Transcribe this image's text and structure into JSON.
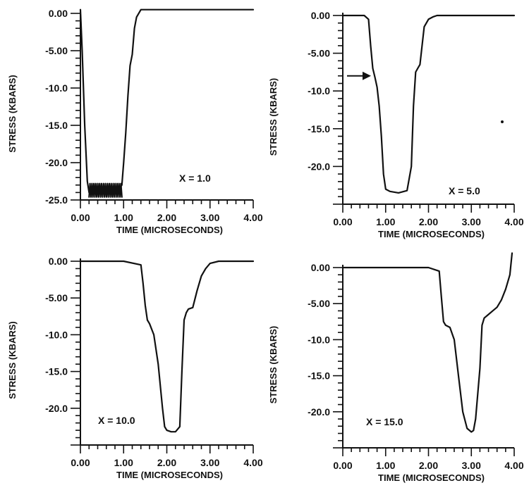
{
  "chart_data": [
    {
      "type": "line",
      "xlabel": "TIME (MICROSECONDS)",
      "ylabel": "STRESS (KBARS)",
      "annotation": "X = 1.0",
      "xlim": [
        0,
        4
      ],
      "ylim": [
        -25,
        0
      ],
      "xticks": [
        "0.00",
        "1.00",
        "2.00",
        "3.00",
        "4.00"
      ],
      "yticks": [
        "0.00",
        "-5.00",
        "-10.0",
        "-15.0",
        "-20.0",
        "-25.0"
      ],
      "x": [
        0.0,
        0.04,
        0.1,
        0.16,
        0.2,
        0.3,
        0.4,
        0.5,
        0.6,
        0.7,
        0.8,
        0.9,
        0.96,
        1.0,
        1.05,
        1.1,
        1.15,
        1.2,
        1.25,
        1.3,
        1.4,
        1.6,
        2.0,
        3.0,
        4.0
      ],
      "y": [
        0.5,
        -5.0,
        -15.0,
        -22.5,
        -24.0,
        -23.5,
        -24.0,
        -23.5,
        -23.8,
        -23.5,
        -23.8,
        -23.5,
        -23.0,
        -20.0,
        -16.0,
        -11.0,
        -7.0,
        -5.5,
        -2.0,
        -0.5,
        0.5,
        0.5,
        0.5,
        0.5,
        0.5
      ]
    },
    {
      "type": "line",
      "xlabel": "TIME (MICROSECONDS)",
      "ylabel": "STRESS (KBARS)",
      "annotation": "X = 5.0",
      "xlim": [
        0,
        4
      ],
      "ylim": [
        -25,
        0
      ],
      "xticks": [
        "0.00",
        "1.00",
        "2.00",
        "3.00",
        "4.00"
      ],
      "yticks": [
        "0.00",
        "-5.00",
        "-10.0",
        "-15.0",
        "-20.0"
      ],
      "x": [
        0.0,
        0.5,
        0.6,
        0.65,
        0.7,
        0.75,
        0.8,
        0.85,
        0.9,
        0.95,
        1.0,
        1.1,
        1.3,
        1.5,
        1.6,
        1.65,
        1.7,
        1.75,
        1.8,
        1.85,
        1.9,
        2.0,
        2.1,
        2.2,
        2.5,
        3.0,
        4.0
      ],
      "y": [
        0.0,
        0.0,
        -0.5,
        -4.0,
        -7.0,
        -8.2,
        -9.5,
        -12.0,
        -16.0,
        -21.0,
        -23.0,
        -23.3,
        -23.5,
        -23.2,
        -20.0,
        -12.0,
        -7.5,
        -7.0,
        -6.5,
        -4.0,
        -1.5,
        -0.5,
        -0.2,
        0.0,
        0.0,
        0.0,
        0.0
      ],
      "arrow_at": -8.0
    },
    {
      "type": "line",
      "xlabel": "TIME (MICROSECONDS)",
      "ylabel": "STRESS (KBARS)",
      "annotation": "X = 10.0",
      "xlim": [
        0,
        4
      ],
      "ylim": [
        -25,
        0
      ],
      "xticks": [
        "0.00",
        "1.00",
        "2.00",
        "3.00",
        "4.00"
      ],
      "yticks": [
        "0.00",
        "-5.00",
        "-10.0",
        "-15.0",
        "-20.0"
      ],
      "x": [
        0.0,
        1.0,
        1.4,
        1.45,
        1.5,
        1.55,
        1.6,
        1.7,
        1.8,
        1.9,
        1.95,
        2.0,
        2.1,
        2.2,
        2.3,
        2.35,
        2.4,
        2.45,
        2.5,
        2.6,
        2.7,
        2.8,
        2.9,
        3.0,
        3.2,
        3.5,
        4.0
      ],
      "y": [
        0.0,
        0.0,
        -0.5,
        -3.0,
        -6.0,
        -8.0,
        -8.5,
        -10.0,
        -14.0,
        -20.0,
        -22.5,
        -23.0,
        -23.2,
        -23.2,
        -22.5,
        -15.0,
        -8.0,
        -7.0,
        -6.5,
        -6.3,
        -4.0,
        -2.0,
        -1.0,
        -0.3,
        0.0,
        0.0,
        0.0
      ]
    },
    {
      "type": "line",
      "xlabel": "TIME (MICROSECONDS)",
      "ylabel": "STRESS (KBARS)",
      "annotation": "X = 15.0",
      "xlim": [
        0,
        4
      ],
      "ylim": [
        -25,
        0
      ],
      "xticks": [
        "0.00",
        "1.00",
        "2.00",
        "3.00",
        "4.00"
      ],
      "yticks": [
        "0.00",
        "-5.00",
        "-10.0",
        "-15.0",
        "-20.0"
      ],
      "x": [
        0.0,
        2.0,
        2.25,
        2.3,
        2.35,
        2.4,
        2.5,
        2.6,
        2.7,
        2.8,
        2.9,
        3.0,
        3.05,
        3.1,
        3.2,
        3.25,
        3.3,
        3.4,
        3.5,
        3.6,
        3.7,
        3.8,
        3.9,
        3.95
      ],
      "y": [
        0.0,
        0.0,
        -0.5,
        -4.0,
        -7.5,
        -8.0,
        -8.3,
        -10.0,
        -15.0,
        -20.0,
        -22.3,
        -22.8,
        -22.6,
        -21.0,
        -14.0,
        -8.0,
        -7.0,
        -6.5,
        -6.0,
        -5.5,
        -4.5,
        -3.0,
        -1.0,
        2.0
      ]
    }
  ]
}
